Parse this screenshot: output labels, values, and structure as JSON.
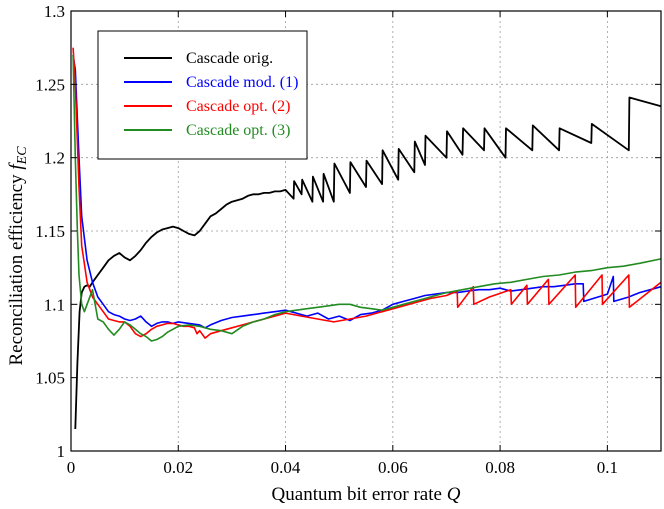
{
  "chart_data": {
    "type": "line",
    "title": "",
    "xlabel": "Quantum bit error rate",
    "xlabel_symbol": "Q",
    "ylabel": "Reconciliation efficiency",
    "ylabel_symbol": "f",
    "ylabel_subscript": "EC",
    "xlim": [
      0,
      0.11
    ],
    "ylim": [
      1.0,
      1.3
    ],
    "xticks": [
      0,
      0.02,
      0.04,
      0.06,
      0.08,
      0.1
    ],
    "xtick_labels": [
      "0",
      "0.02",
      "0.04",
      "0.06",
      "0.08",
      "0.1"
    ],
    "yticks": [
      1.0,
      1.05,
      1.1,
      1.15,
      1.2,
      1.25,
      1.3
    ],
    "ytick_labels": [
      "1",
      "1.05",
      "1.1",
      "1.15",
      "1.2",
      "1.25",
      "1.3"
    ],
    "grid": true,
    "legend_position": "top-left",
    "series": [
      {
        "name": "Cascade orig.",
        "color": "#000000",
        "x": [
          0.0008,
          0.0012,
          0.0016,
          0.002,
          0.0025,
          0.003,
          0.0035,
          0.004,
          0.005,
          0.006,
          0.007,
          0.008,
          0.009,
          0.01,
          0.011,
          0.012,
          0.013,
          0.014,
          0.015,
          0.016,
          0.017,
          0.018,
          0.019,
          0.02,
          0.021,
          0.022,
          0.023,
          0.024,
          0.025,
          0.026,
          0.027,
          0.028,
          0.029,
          0.03,
          0.031,
          0.032,
          0.033,
          0.034,
          0.035,
          0.036,
          0.037,
          0.038,
          0.039,
          0.04,
          0.0415,
          0.0416,
          0.043,
          0.0431,
          0.045,
          0.0451,
          0.047,
          0.0471,
          0.049,
          0.0491,
          0.052,
          0.0521,
          0.055,
          0.0551,
          0.058,
          0.0581,
          0.061,
          0.0611,
          0.064,
          0.0641,
          0.066,
          0.0661,
          0.07,
          0.0701,
          0.073,
          0.0731,
          0.077,
          0.0771,
          0.081,
          0.0811,
          0.086,
          0.0861,
          0.091,
          0.0911,
          0.097,
          0.0971,
          0.104,
          0.1041,
          0.11
        ],
        "y": [
          1.015,
          1.06,
          1.095,
          1.108,
          1.112,
          1.113,
          1.112,
          1.115,
          1.12,
          1.125,
          1.13,
          1.133,
          1.135,
          1.132,
          1.13,
          1.133,
          1.137,
          1.142,
          1.146,
          1.149,
          1.151,
          1.152,
          1.153,
          1.152,
          1.15,
          1.148,
          1.147,
          1.15,
          1.155,
          1.16,
          1.162,
          1.165,
          1.168,
          1.17,
          1.171,
          1.172,
          1.174,
          1.175,
          1.175,
          1.176,
          1.176,
          1.177,
          1.177,
          1.178,
          1.172,
          1.184,
          1.175,
          1.185,
          1.17,
          1.187,
          1.17,
          1.189,
          1.17,
          1.196,
          1.176,
          1.197,
          1.18,
          1.198,
          1.182,
          1.205,
          1.185,
          1.206,
          1.19,
          1.211,
          1.195,
          1.215,
          1.2,
          1.218,
          1.202,
          1.22,
          1.205,
          1.22,
          1.2,
          1.22,
          1.205,
          1.222,
          1.205,
          1.22,
          1.21,
          1.223,
          1.205,
          1.241,
          1.235
        ]
      },
      {
        "name": "Cascade mod. (1)",
        "color": "#0000ff",
        "x": [
          0.0004,
          0.0008,
          0.0015,
          0.002,
          0.003,
          0.004,
          0.005,
          0.006,
          0.007,
          0.008,
          0.009,
          0.01,
          0.011,
          0.012,
          0.013,
          0.014,
          0.015,
          0.016,
          0.017,
          0.018,
          0.019,
          0.02,
          0.022,
          0.024,
          0.025,
          0.026,
          0.028,
          0.03,
          0.032,
          0.034,
          0.036,
          0.038,
          0.04,
          0.042,
          0.044,
          0.046,
          0.048,
          0.05,
          0.052,
          0.054,
          0.056,
          0.058,
          0.06,
          0.062,
          0.064,
          0.066,
          0.068,
          0.07,
          0.072,
          0.074,
          0.076,
          0.078,
          0.08,
          0.082,
          0.084,
          0.086,
          0.088,
          0.09,
          0.092,
          0.094,
          0.0955,
          0.0956,
          0.1,
          0.1011,
          0.1012,
          0.104,
          0.106,
          0.108,
          0.11
        ],
        "y": [
          1.27,
          1.26,
          1.2,
          1.16,
          1.13,
          1.115,
          1.105,
          1.1,
          1.095,
          1.093,
          1.092,
          1.09,
          1.089,
          1.09,
          1.092,
          1.088,
          1.085,
          1.087,
          1.088,
          1.088,
          1.087,
          1.088,
          1.087,
          1.086,
          1.084,
          1.086,
          1.089,
          1.091,
          1.092,
          1.093,
          1.094,
          1.095,
          1.096,
          1.094,
          1.092,
          1.094,
          1.09,
          1.092,
          1.089,
          1.093,
          1.094,
          1.096,
          1.1,
          1.102,
          1.104,
          1.106,
          1.107,
          1.108,
          1.108,
          1.109,
          1.11,
          1.11,
          1.111,
          1.109,
          1.11,
          1.111,
          1.112,
          1.112,
          1.113,
          1.114,
          1.114,
          1.102,
          1.107,
          1.119,
          1.102,
          1.105,
          1.108,
          1.11,
          1.112
        ]
      },
      {
        "name": "Cascade opt. (2)",
        "color": "#ff0000",
        "x": [
          0.0004,
          0.0008,
          0.0015,
          0.002,
          0.003,
          0.004,
          0.005,
          0.006,
          0.007,
          0.008,
          0.009,
          0.01,
          0.011,
          0.012,
          0.013,
          0.014,
          0.015,
          0.016,
          0.017,
          0.018,
          0.019,
          0.02,
          0.021,
          0.022,
          0.023,
          0.0235,
          0.024,
          0.025,
          0.026,
          0.028,
          0.03,
          0.032,
          0.034,
          0.036,
          0.038,
          0.04,
          0.043,
          0.046,
          0.049,
          0.052,
          0.055,
          0.058,
          0.061,
          0.064,
          0.067,
          0.07,
          0.072,
          0.0721,
          0.075,
          0.0751,
          0.078,
          0.082,
          0.0821,
          0.085,
          0.0851,
          0.089,
          0.0891,
          0.094,
          0.0941,
          0.099,
          0.0991,
          0.104,
          0.1041,
          0.11
        ],
        "y": [
          1.275,
          1.25,
          1.18,
          1.14,
          1.115,
          1.105,
          1.1,
          1.095,
          1.09,
          1.089,
          1.088,
          1.088,
          1.085,
          1.08,
          1.078,
          1.08,
          1.083,
          1.085,
          1.086,
          1.087,
          1.087,
          1.086,
          1.085,
          1.085,
          1.084,
          1.08,
          1.082,
          1.077,
          1.08,
          1.082,
          1.084,
          1.086,
          1.088,
          1.09,
          1.092,
          1.094,
          1.092,
          1.09,
          1.088,
          1.09,
          1.092,
          1.095,
          1.098,
          1.101,
          1.104,
          1.106,
          1.109,
          1.098,
          1.112,
          1.1,
          1.105,
          1.11,
          1.1,
          1.113,
          1.1,
          1.117,
          1.1,
          1.12,
          1.098,
          1.12,
          1.1,
          1.12,
          1.098,
          1.115
        ]
      },
      {
        "name": "Cascade opt. (3)",
        "color": "#228b22",
        "x": [
          0.0004,
          0.0008,
          0.0012,
          0.0015,
          0.002,
          0.0025,
          0.003,
          0.004,
          0.005,
          0.006,
          0.007,
          0.008,
          0.009,
          0.01,
          0.011,
          0.012,
          0.013,
          0.014,
          0.015,
          0.016,
          0.017,
          0.018,
          0.019,
          0.02,
          0.022,
          0.024,
          0.026,
          0.028,
          0.03,
          0.032,
          0.034,
          0.036,
          0.038,
          0.04,
          0.042,
          0.044,
          0.046,
          0.048,
          0.05,
          0.052,
          0.054,
          0.056,
          0.058,
          0.06,
          0.062,
          0.064,
          0.066,
          0.068,
          0.07,
          0.073,
          0.076,
          0.079,
          0.082,
          0.085,
          0.088,
          0.091,
          0.094,
          0.097,
          0.1,
          0.103,
          0.106,
          0.11
        ],
        "y": [
          1.27,
          1.2,
          1.15,
          1.12,
          1.1,
          1.095,
          1.1,
          1.11,
          1.09,
          1.088,
          1.083,
          1.079,
          1.083,
          1.088,
          1.086,
          1.083,
          1.08,
          1.078,
          1.075,
          1.076,
          1.078,
          1.081,
          1.083,
          1.085,
          1.086,
          1.085,
          1.083,
          1.082,
          1.08,
          1.085,
          1.088,
          1.09,
          1.093,
          1.095,
          1.096,
          1.097,
          1.098,
          1.099,
          1.1,
          1.1,
          1.098,
          1.097,
          1.096,
          1.098,
          1.1,
          1.102,
          1.104,
          1.106,
          1.108,
          1.11,
          1.112,
          1.114,
          1.115,
          1.117,
          1.119,
          1.12,
          1.122,
          1.123,
          1.125,
          1.126,
          1.128,
          1.131
        ]
      }
    ]
  }
}
